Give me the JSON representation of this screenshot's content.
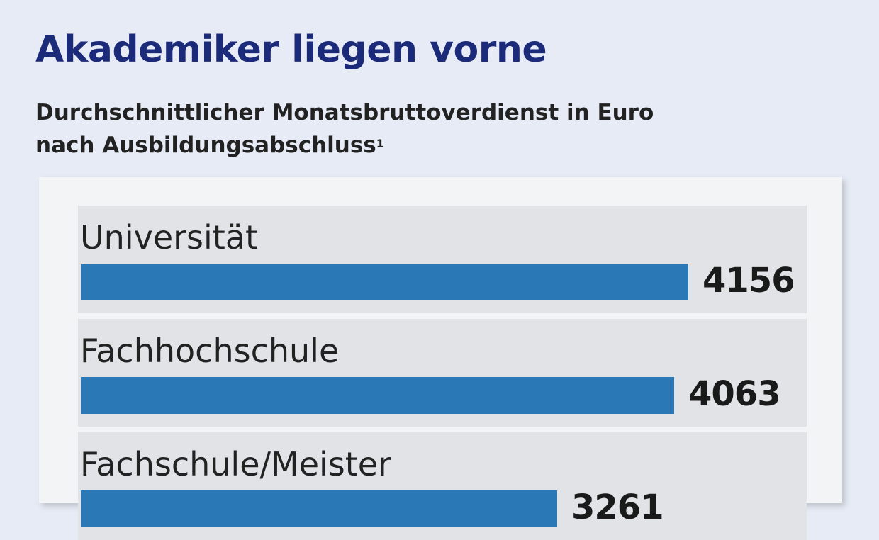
{
  "title": "Akademiker liegen vorne",
  "subtitle_line1": "Durchschnittlicher Monatsbruttoverdienst in Euro",
  "subtitle_line2": "nach Ausbildungsabschluss",
  "subtitle_footnote": "1",
  "colors": {
    "bar": "#2a78b5",
    "title": "#1c2a7a",
    "background": "#e6ebf5"
  },
  "chart_data": {
    "type": "bar",
    "orientation": "horizontal",
    "title": "Akademiker liegen vorne",
    "categories": [
      "Universität",
      "Fachhochschule",
      "Fachschule/Meister"
    ],
    "values": [
      4156,
      4063,
      3261
    ],
    "value_labels": [
      "4156",
      "4063",
      "3261"
    ],
    "xlim": [
      0,
      4900
    ],
    "grid": false,
    "legend": "none"
  }
}
